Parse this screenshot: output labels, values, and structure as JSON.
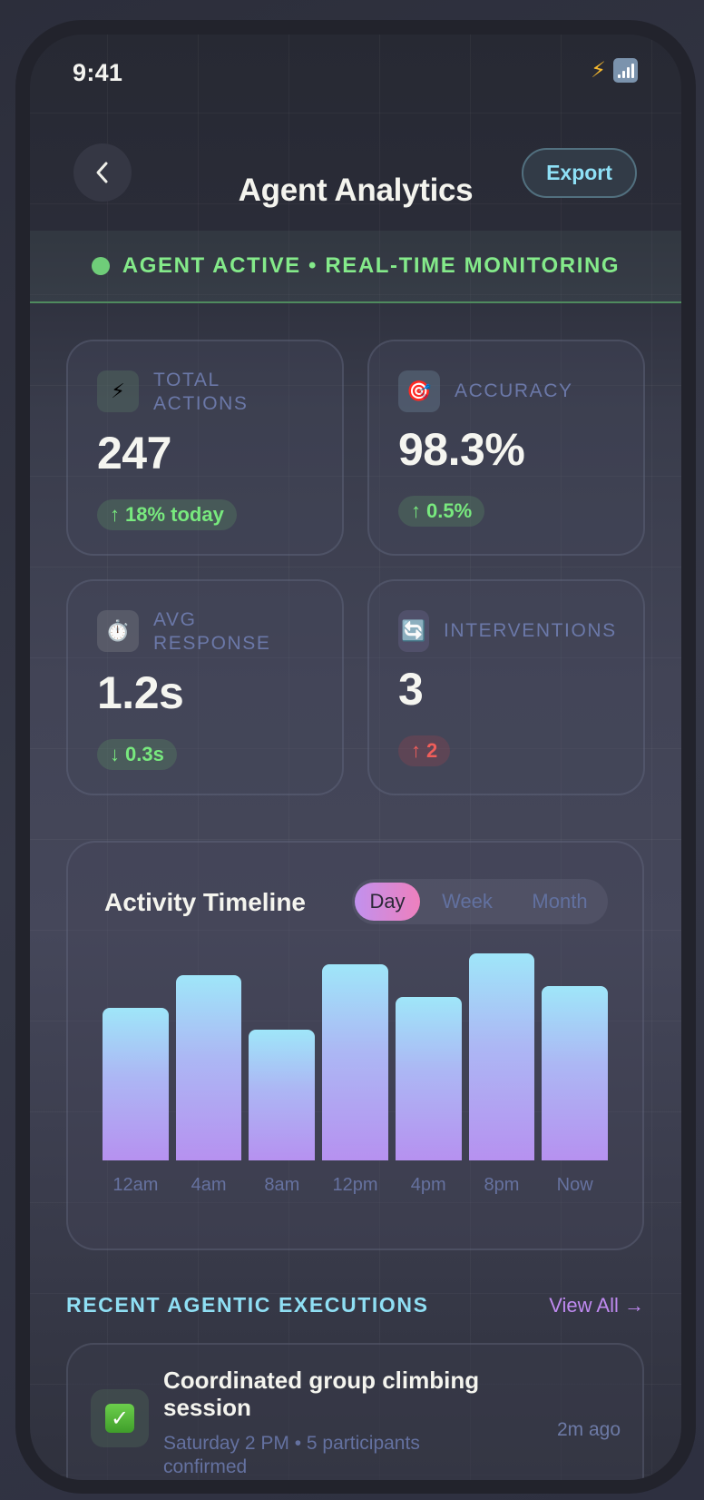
{
  "status_bar": {
    "time": "9:41",
    "icons": [
      "bolt-icon",
      "signal-icon"
    ]
  },
  "header": {
    "back_icon": "chevron-left-icon",
    "title": "Agent Analytics",
    "export_label": "Export"
  },
  "banner": {
    "text": "AGENT ACTIVE • REAL-TIME MONITORING",
    "dot_color": "#6fcd79",
    "text_color": "#84ea8a"
  },
  "metrics": [
    {
      "icon": "⚡",
      "icon_name": "bolt-icon",
      "label": "TOTAL ACTIONS",
      "label_lines": [
        "TOTAL",
        "ACTIONS"
      ],
      "value": "247",
      "delta_arrow": "↑",
      "delta_text": "18% today",
      "delta_type": "good"
    },
    {
      "icon": "🎯",
      "icon_name": "target-icon",
      "label": "ACCURACY",
      "label_lines": [
        "ACCURACY"
      ],
      "value": "98.3%",
      "delta_arrow": "↑",
      "delta_text": "0.5%",
      "delta_type": "good"
    },
    {
      "icon": "⏱️",
      "icon_name": "stopwatch-icon",
      "label": "AVG RESPONSE",
      "label_lines": [
        "AVG",
        "RESPONSE"
      ],
      "value": "1.2s",
      "delta_arrow": "↓",
      "delta_text": "0.3s",
      "delta_type": "good"
    },
    {
      "icon": "🔄",
      "icon_name": "refresh-icon",
      "label": "INTERVENTIONS",
      "label_lines": [
        "INTERVENTIONS"
      ],
      "value": "3",
      "delta_arrow": "↑",
      "delta_text": "2",
      "delta_type": "bad"
    }
  ],
  "activity": {
    "title": "Activity Timeline",
    "tabs": [
      {
        "label": "Day",
        "active": true
      },
      {
        "label": "Week",
        "active": false
      },
      {
        "label": "Month",
        "active": false
      }
    ]
  },
  "chart_data": {
    "type": "bar",
    "title": "Activity Timeline",
    "categories": [
      "12am",
      "4am",
      "8am",
      "12pm",
      "4pm",
      "8pm",
      "Now"
    ],
    "values": [
      70,
      85,
      60,
      90,
      75,
      95,
      80
    ],
    "unit": "percent of chart height",
    "xlabel": "",
    "ylabel": "",
    "ylim": [
      0,
      100
    ],
    "grid": false,
    "legend": null,
    "gradient": [
      "#9fe6f9",
      "#b691f0"
    ]
  },
  "recent": {
    "title": "RECENT AGENTIC EXECUTIONS",
    "view_all": "View All →",
    "items": [
      {
        "icon": "✓",
        "icon_name": "check-mark-icon",
        "title": "Coordinated group climbing session",
        "subtitle": "Saturday 2 PM • 5 participants confirmed",
        "time": "2m ago"
      }
    ]
  },
  "colors": {
    "accent_cyan": "#8ee0f6",
    "accent_purple": "#bf8af0",
    "positive": "#78e97e",
    "negative": "#ef5e5a",
    "muted_label": "#6b78a8"
  }
}
